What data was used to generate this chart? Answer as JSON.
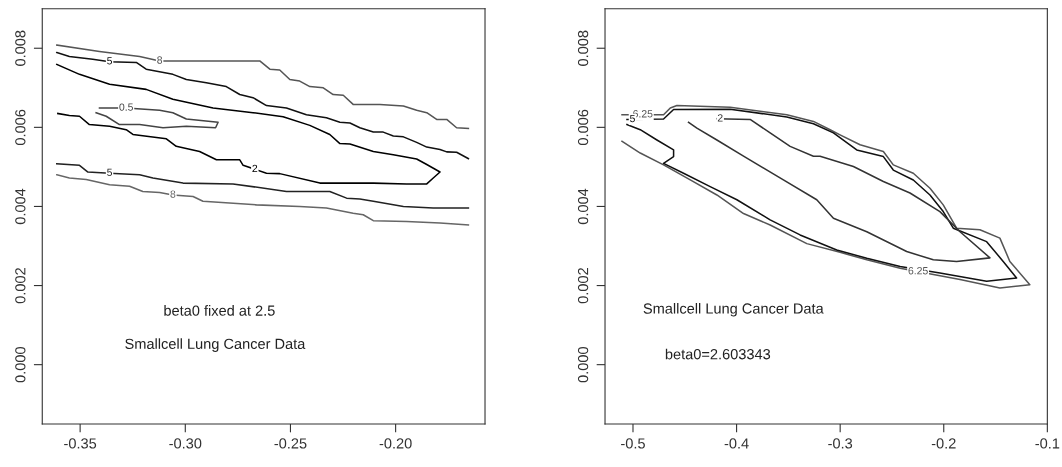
{
  "chart_data": [
    {
      "type": "line",
      "xlim": [
        -0.368,
        -0.1575
      ],
      "ylim": [
        -0.0015,
        0.009
      ],
      "xticks": [
        {
          "value": -0.35,
          "label": "-0.35"
        },
        {
          "value": -0.3,
          "label": "-0.30"
        },
        {
          "value": -0.25,
          "label": "-0.25"
        },
        {
          "value": -0.2,
          "label": "-0.20"
        }
      ],
      "yticks": [
        {
          "value": 0.0,
          "label": "0.000"
        },
        {
          "value": 0.002,
          "label": "0.002"
        },
        {
          "value": 0.004,
          "label": "0.004"
        },
        {
          "value": 0.006,
          "label": "0.006"
        },
        {
          "value": 0.008,
          "label": "0.008"
        }
      ],
      "grid": false,
      "legend": false,
      "annotations": [
        "beta0 fixed at 2.5",
        "Smallcell Lung Cancer Data"
      ],
      "series": [
        {
          "name": "8",
          "color": "#555555",
          "x": [
            -0.3611,
            -0.3408,
            -0.3217,
            -0.3122,
            -0.2646,
            -0.2598,
            -0.2551,
            -0.2503,
            -0.2456,
            -0.2408,
            -0.2344,
            -0.2297,
            -0.2249,
            -0.2202,
            -0.2075,
            -0.1963,
            -0.19,
            -0.1852,
            -0.1805,
            -0.1757,
            -0.171,
            -0.1654
          ],
          "values": [
            0.00808,
            0.00792,
            0.00779,
            0.00768,
            0.00768,
            0.00747,
            0.00745,
            0.00721,
            0.00717,
            0.00703,
            0.007,
            0.00683,
            0.00681,
            0.00658,
            0.00658,
            0.00654,
            0.00643,
            0.00637,
            0.0062,
            0.0062,
            0.00599,
            0.00597
          ]
        },
        {
          "name": "5",
          "color": "#111111",
          "x": [
            -0.3611,
            -0.3551,
            -0.344,
            -0.336,
            -0.3233,
            -0.3186,
            -0.3059,
            -0.2995,
            -0.29,
            -0.2805,
            -0.2741,
            -0.2678,
            -0.2614,
            -0.2519,
            -0.2424,
            -0.2329,
            -0.2265,
            -0.2217,
            -0.217,
            -0.2106,
            -0.2059,
            -0.2011,
            -0.1963,
            -0.19,
            -0.1852,
            -0.1789,
            -0.1757,
            -0.171,
            -0.1654
          ],
          "values": [
            0.00789,
            0.00779,
            0.00772,
            0.00766,
            0.00764,
            0.00747,
            0.00734,
            0.00721,
            0.00713,
            0.00703,
            0.00683,
            0.00675,
            0.00655,
            0.00649,
            0.00632,
            0.00624,
            0.00613,
            0.00611,
            0.00599,
            0.00588,
            0.00588,
            0.00578,
            0.00576,
            0.00562,
            0.0055,
            0.00544,
            0.00538,
            0.00537,
            0.00521
          ]
        },
        {
          "name": "0.5",
          "color": "#444444",
          "x": [
            -0.3408,
            -0.3281,
            -0.3122,
            -0.3059,
            -0.2995,
            -0.2844,
            -0.2856,
            -0.2995,
            -0.3106,
            -0.3217,
            -0.3313,
            -0.3376,
            -0.3424
          ],
          "values": [
            0.00649,
            0.00649,
            0.00643,
            0.00637,
            0.00621,
            0.00613,
            0.00599,
            0.00603,
            0.00599,
            0.00607,
            0.00607,
            0.00628,
            0.00637
          ]
        },
        {
          "name": "2",
          "color": "#000000",
          "x": [
            -0.3611,
            -0.3503,
            -0.336,
            -0.3186,
            -0.3059,
            -0.2868,
            -0.2678,
            -0.2535,
            -0.2408,
            -0.2313,
            -0.2265,
            -0.2217,
            -0.2106,
            -0.2011,
            -0.19,
            -0.1852,
            -0.1789,
            -0.1821,
            -0.1852,
            -0.1948,
            -0.2106,
            -0.2265,
            -0.236,
            -0.2551,
            -0.2614,
            -0.2725,
            -0.2741,
            -0.2852,
            -0.2932,
            -0.3043,
            -0.309,
            -0.3249,
            -0.3281,
            -0.336,
            -0.3456,
            -0.3503,
            -0.3551,
            -0.3606
          ],
          "values": [
            0.00759,
            0.00734,
            0.00709,
            0.00696,
            0.00671,
            0.00649,
            0.00637,
            0.00627,
            0.00605,
            0.00582,
            0.00559,
            0.00558,
            0.00539,
            0.00531,
            0.0052,
            0.00506,
            0.00487,
            0.00472,
            0.00457,
            0.00457,
            0.00459,
            0.00459,
            0.00459,
            0.00483,
            0.00484,
            0.00504,
            0.00518,
            0.00518,
            0.00539,
            0.00552,
            0.00571,
            0.00582,
            0.00594,
            0.00603,
            0.00607,
            0.00628,
            0.0063,
            0.00635
          ]
        },
        {
          "name": "5",
          "color": "#222222",
          "x": [
            -0.3611,
            -0.3503,
            -0.3463,
            -0.336,
            -0.3217,
            -0.3154,
            -0.3011,
            -0.2773,
            -0.2519,
            -0.2313,
            -0.2233,
            -0.217,
            -0.2106,
            -0.1963,
            -0.1821,
            -0.1654
          ],
          "values": [
            0.00508,
            0.00504,
            0.00487,
            0.00484,
            0.0048,
            0.00472,
            0.00459,
            0.00457,
            0.00438,
            0.00438,
            0.00421,
            0.00419,
            0.00413,
            0.004,
            0.00396,
            0.00396
          ]
        },
        {
          "name": "8",
          "color": "#666666",
          "x": [
            -0.3611,
            -0.3551,
            -0.3471,
            -0.336,
            -0.3265,
            -0.3202,
            -0.3122,
            -0.3059,
            -0.2963,
            -0.2916,
            -0.2662,
            -0.2456,
            -0.2329,
            -0.2202,
            -0.2154,
            -0.2106,
            -0.1948,
            -0.1789,
            -0.1654
          ],
          "values": [
            0.0048,
            0.00472,
            0.00468,
            0.00455,
            0.00451,
            0.00438,
            0.00435,
            0.00429,
            0.00425,
            0.00413,
            0.00404,
            0.004,
            0.00396,
            0.00383,
            0.00379,
            0.00364,
            0.00362,
            0.00358,
            0.00353
          ]
        }
      ]
    },
    {
      "type": "line",
      "xlim": [
        -0.527,
        -0.1
      ],
      "ylim": [
        -0.0015,
        0.009
      ],
      "xticks": [
        -0.5,
        -0.4,
        -0.3,
        -0.2,
        -0.1
      ],
      "yticks": [
        {
          "value": 0.0,
          "label": "0.000"
        },
        {
          "value": 0.002,
          "label": "0.002"
        },
        {
          "value": 0.004,
          "label": "0.004"
        },
        {
          "value": 0.006,
          "label": "0.006"
        },
        {
          "value": 0.008,
          "label": "0.008"
        }
      ],
      "grid": false,
      "legend": false,
      "annotations": [
        "Smallcell Lung Cancer Data",
        "beta0=2.603343"
      ],
      "series": [
        {
          "name": "6.25",
          "color": "#555555",
          "x": [
            -0.5106,
            -0.4705,
            -0.464,
            -0.4576,
            -0.4062,
            -0.3515,
            -0.3258,
            -0.3097,
            -0.3001,
            -0.2808,
            -0.2583,
            -0.2487,
            -0.2294,
            -0.2133,
            -0.2005,
            -0.1876,
            -0.1651,
            -0.1458,
            -0.1362,
            -0.1169,
            -0.1458,
            -0.1843,
            -0.2421,
            -0.2743,
            -0.3001,
            -0.3322,
            -0.3676,
            -0.3933,
            -0.419,
            -0.4447,
            -0.4705,
            -0.493,
            -0.5106
          ],
          "values": [
            0.00632,
            0.00632,
            0.00649,
            0.00655,
            0.00651,
            0.00632,
            0.00615,
            0.00594,
            0.00581,
            0.00556,
            0.00539,
            0.00505,
            0.00484,
            0.00446,
            0.00404,
            0.00345,
            0.00341,
            0.0032,
            0.00261,
            0.00202,
            0.00194,
            0.00215,
            0.00244,
            0.00265,
            0.00284,
            0.00306,
            0.00353,
            0.00382,
            0.00429,
            0.00467,
            0.00505,
            0.00535,
            0.00565
          ]
        },
        {
          "name": "5",
          "color": "#111111",
          "x": [
            -0.5058,
            -0.4705,
            -0.4608,
            -0.4062,
            -0.3515,
            -0.3258,
            -0.3065,
            -0.284,
            -0.2583,
            -0.2487,
            -0.2294,
            -0.2133,
            -0.2005,
            -0.1908,
            -0.1586,
            -0.1426,
            -0.1297,
            -0.1586,
            -0.2037,
            -0.2421,
            -0.2743,
            -0.3033,
            -0.3387,
            -0.3676,
            -0.3997,
            -0.4255,
            -0.4512,
            -0.4705,
            -0.4608,
            -0.4608,
            -0.4769,
            -0.493,
            -0.5058
          ],
          "values": [
            0.0062,
            0.00621,
            0.00645,
            0.00646,
            0.00626,
            0.00609,
            0.00586,
            0.00543,
            0.00526,
            0.00492,
            0.00467,
            0.00429,
            0.00387,
            0.00345,
            0.00311,
            0.00261,
            0.00219,
            0.00211,
            0.00232,
            0.00248,
            0.00269,
            0.0029,
            0.00328,
            0.00366,
            0.00417,
            0.0045,
            0.00484,
            0.00509,
            0.00526,
            0.00543,
            0.00568,
            0.00594,
            0.00607
          ]
        },
        {
          "name": "2",
          "color": "#333333",
          "x": [
            -0.419,
            -0.3869,
            -0.3676,
            -0.3483,
            -0.3258,
            -0.3194,
            -0.2872,
            -0.2583,
            -0.2326,
            -0.2037,
            -0.1843,
            -0.1554,
            -0.1876,
            -0.2101,
            -0.2358,
            -0.2743,
            -0.3065,
            -0.3226,
            -0.3548,
            -0.3933,
            -0.419,
            -0.4383,
            -0.4464
          ],
          "values": [
            0.00622,
            0.0062,
            0.00586,
            0.00552,
            0.00527,
            0.00527,
            0.00501,
            0.00463,
            0.00434,
            0.00387,
            0.00336,
            0.0027,
            0.00261,
            0.00265,
            0.00286,
            0.00336,
            0.0037,
            0.00417,
            0.00467,
            0.00527,
            0.00568,
            0.00598,
            0.00613
          ]
        }
      ]
    }
  ]
}
